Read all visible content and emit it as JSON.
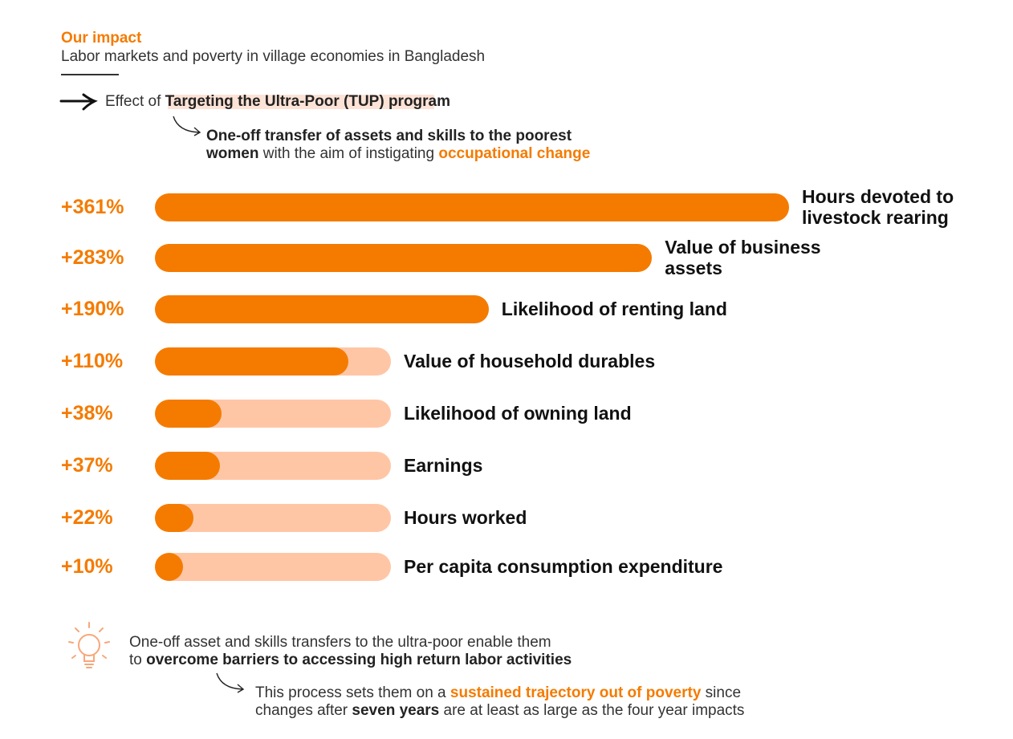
{
  "header": {
    "title": "Our impact",
    "subtitle": "Labor markets and poverty in village economies in Bangladesh"
  },
  "program": [
    {
      "text": "Effect of "
    },
    {
      "text": "Targeting the Ultra-Poor (TUP) program",
      "style": "bold"
    }
  ],
  "program_note": [
    [
      {
        "text": "One-off transfer of assets and skills to the poorest",
        "style": "bold"
      }
    ],
    [
      {
        "text": "women",
        "style": "bold"
      },
      {
        "text": " with the aim of instigating "
      },
      {
        "text": "occupational change",
        "style": "orange"
      }
    ]
  ],
  "chart_data": {
    "type": "bar",
    "orientation": "horizontal",
    "categories": [
      "Hours devoted to livestock rearing",
      "Value of business assets",
      "Likelihood of renting land",
      "Value of household durables",
      "Likelihood of owning land",
      "Earnings",
      "Hours worked",
      "Per capita consumption expenditure"
    ],
    "values": [
      361,
      283,
      190,
      110,
      38,
      37,
      22,
      10
    ],
    "value_labels": [
      "+361%",
      "+283%",
      "+190%",
      "+110%",
      "+38%",
      "+37%",
      "+22%",
      "+10%"
    ],
    "color": "#f47b00",
    "track_color": "#ffc6a6"
  },
  "footer": {
    "lines": [
      [
        {
          "text": "One-off asset and skills transfers to the ultra-poor enable them"
        }
      ],
      [
        {
          "text": "to "
        },
        {
          "text": "overcome barriers to accessing high return labor activities",
          "style": "bold"
        }
      ]
    ],
    "note": [
      [
        {
          "text": "This process sets them on a "
        },
        {
          "text": "sustained trajectory out of poverty",
          "style": "orange"
        },
        {
          "text": " since"
        }
      ],
      [
        {
          "text": "changes after "
        },
        {
          "text": "seven years",
          "style": "bold"
        },
        {
          "text": " are at least as large as the four year impacts"
        }
      ]
    ]
  }
}
